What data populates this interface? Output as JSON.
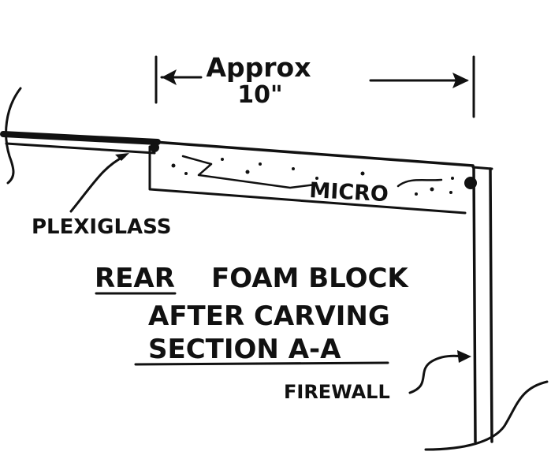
{
  "dimension": {
    "line1": "Approx",
    "line2": "10\""
  },
  "labels": {
    "plexiglass": "PLEXIGLASS",
    "micro": "MICRO",
    "firewall": "FIREWALL"
  },
  "caption": {
    "line1_underlined": "REAR",
    "line1_rest": "FOAM BLOCK",
    "line2": "AFTER CARVING",
    "line3": "SECTION A-A"
  },
  "colors": {
    "ink": "#111111",
    "paper": "#ffffff"
  }
}
